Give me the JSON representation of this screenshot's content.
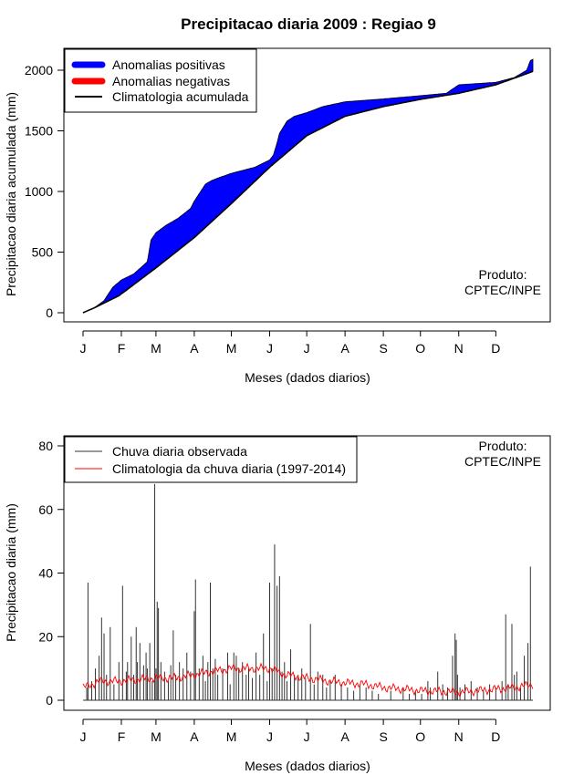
{
  "title": "Precipitacao diaria 2009 : Regiao 9",
  "colors": {
    "positive": "#0000ff",
    "negative": "#ff0000",
    "climatology": "#000000",
    "observed": "#333333",
    "clim_daily": "#ff0000"
  },
  "chart_data": [
    {
      "type": "area",
      "name": "accumulated",
      "title": "Precipitacao diaria 2009 : Regiao 9",
      "xlabel": "Meses (dados diarios)",
      "ylabel": "Precipitacao diaria acumulada (mm)",
      "xlim": [
        1,
        365
      ],
      "ylim": [
        0,
        2000
      ],
      "month_ticks": [
        "J",
        "F",
        "M",
        "A",
        "M",
        "J",
        "J",
        "A",
        "S",
        "O",
        "N",
        "D"
      ],
      "month_days": [
        1,
        32,
        60,
        91,
        121,
        152,
        182,
        213,
        244,
        274,
        305,
        335
      ],
      "y_ticks": [
        0,
        500,
        1000,
        1500,
        2000
      ],
      "legend": [
        "Anomalias positivas",
        "Anomalias negativas",
        "Climatologia acumulada"
      ],
      "legend_position": "top-left",
      "annotation": [
        "Produto:",
        "CPTEC/INPE"
      ],
      "climatology_cumulative": {
        "days": [
          1,
          10,
          30,
          60,
          91,
          121,
          152,
          182,
          213,
          244,
          274,
          305,
          335,
          365
        ],
        "values": [
          0,
          40,
          140,
          370,
          620,
          900,
          1200,
          1460,
          1620,
          1700,
          1760,
          1810,
          1880,
          1990
        ]
      },
      "observed_cumulative": {
        "days": [
          1,
          10,
          18,
          25,
          32,
          42,
          53,
          56,
          60,
          68,
          78,
          88,
          91,
          100,
          105,
          110,
          121,
          140,
          152,
          155,
          158,
          160,
          166,
          172,
          182,
          195,
          213,
          240,
          274,
          295,
          305,
          320,
          335,
          350,
          360,
          363,
          365
        ],
        "values": [
          0,
          40,
          100,
          210,
          270,
          320,
          420,
          600,
          660,
          720,
          780,
          860,
          920,
          1060,
          1090,
          1110,
          1150,
          1200,
          1260,
          1300,
          1400,
          1480,
          1580,
          1620,
          1650,
          1700,
          1740,
          1760,
          1790,
          1810,
          1880,
          1890,
          1900,
          1940,
          2000,
          2080,
          2090
        ]
      }
    },
    {
      "type": "bar",
      "name": "daily",
      "xlabel": "Meses (dados diarios)",
      "ylabel": "Precipitacao diaria (mm)",
      "xlim": [
        1,
        365
      ],
      "ylim": [
        0,
        80
      ],
      "month_ticks": [
        "J",
        "F",
        "M",
        "A",
        "M",
        "J",
        "J",
        "A",
        "S",
        "O",
        "N",
        "D"
      ],
      "month_days": [
        1,
        32,
        60,
        91,
        121,
        152,
        182,
        213,
        244,
        274,
        305,
        335
      ],
      "y_ticks": [
        0,
        20,
        40,
        60,
        80
      ],
      "legend": [
        "Chuva diaria observada",
        "Climatologia da chuva diaria (1997-2014)"
      ],
      "legend_position": "top-left",
      "annotation": [
        "Produto:",
        "CPTEC/INPE"
      ],
      "observed_daily": {
        "days": [
          4,
          5,
          8,
          11,
          14,
          16,
          18,
          20,
          23,
          26,
          30,
          33,
          36,
          37,
          40,
          42,
          44,
          45,
          47,
          50,
          52,
          53,
          55,
          57,
          59,
          60,
          61,
          62,
          64,
          67,
          70,
          72,
          74,
          76,
          79,
          82,
          85,
          88,
          91,
          92,
          95,
          98,
          100,
          102,
          104,
          106,
          108,
          110,
          114,
          118,
          120,
          123,
          125,
          127,
          130,
          133,
          135,
          138,
          141,
          144,
          147,
          150,
          152,
          154,
          156,
          158,
          160,
          162,
          164,
          166,
          169,
          172,
          175,
          178,
          181,
          185,
          188,
          191,
          195,
          198,
          201,
          205,
          210,
          215,
          220,
          225,
          230,
          235,
          240,
          250,
          260,
          265,
          270,
          275,
          280,
          282,
          288,
          292,
          296,
          300,
          302,
          303,
          304,
          306,
          310,
          315,
          320,
          325,
          330,
          335,
          340,
          343,
          345,
          348,
          350,
          352,
          355,
          358,
          361,
          363
        ],
        "values": [
          4,
          37,
          6,
          10,
          14,
          26,
          21,
          8,
          23,
          5,
          12,
          36,
          9,
          12,
          20,
          8,
          23,
          12,
          18,
          11,
          15,
          10,
          18,
          6,
          68,
          10,
          31,
          29,
          12,
          9,
          6,
          11,
          22,
          8,
          12,
          10,
          15,
          9,
          28,
          38,
          10,
          14,
          6,
          12,
          37,
          10,
          13,
          8,
          10,
          15,
          5,
          15,
          14,
          10,
          12,
          8,
          10,
          7,
          15,
          8,
          21,
          6,
          37,
          10,
          49,
          36,
          39,
          9,
          12,
          6,
          16,
          8,
          8,
          10,
          7,
          24,
          5,
          9,
          8,
          4,
          6,
          8,
          5,
          4,
          3,
          5,
          4,
          3,
          2,
          3,
          4,
          2,
          3,
          2,
          6,
          4,
          9,
          5,
          4,
          14,
          21,
          19,
          8,
          4,
          5,
          6,
          4,
          3,
          5,
          4,
          6,
          27,
          5,
          24,
          8,
          9,
          4,
          14,
          18,
          42
        ]
      },
      "climatology_daily": {
        "days": [
          1,
          15,
          30,
          45,
          60,
          75,
          91,
          105,
          121,
          135,
          152,
          165,
          182,
          200,
          213,
          230,
          244,
          260,
          274,
          290,
          305,
          320,
          335,
          350,
          365
        ],
        "values": [
          4,
          6,
          6,
          6.5,
          7,
          7,
          8,
          9,
          10,
          10,
          10,
          8,
          7,
          6,
          5.5,
          5,
          4,
          3.5,
          3,
          2.8,
          2.5,
          3,
          3.5,
          4,
          5
        ]
      }
    }
  ]
}
